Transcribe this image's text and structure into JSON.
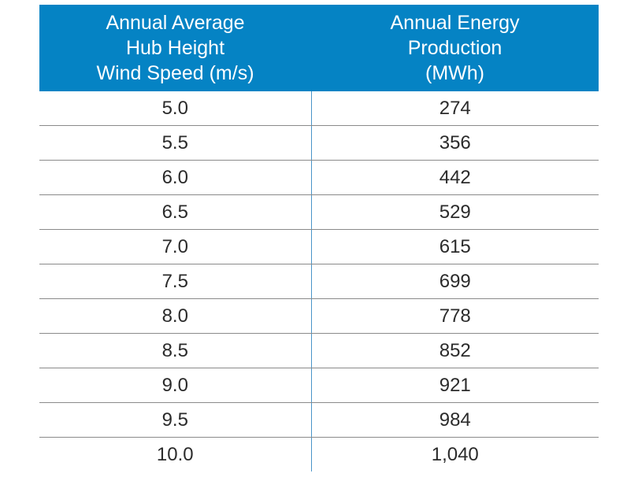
{
  "chart_data": {
    "type": "table",
    "columns": [
      {
        "lines": [
          "Annual Average",
          "Hub Height",
          "Wind Speed (m/s)"
        ]
      },
      {
        "lines": [
          "Annual Energy",
          "Production",
          "(MWh)"
        ]
      }
    ],
    "rows": [
      [
        "5.0",
        "274"
      ],
      [
        "5.5",
        "356"
      ],
      [
        "6.0",
        "442"
      ],
      [
        "6.5",
        "529"
      ],
      [
        "7.0",
        "615"
      ],
      [
        "7.5",
        "699"
      ],
      [
        "8.0",
        "778"
      ],
      [
        "8.5",
        "852"
      ],
      [
        "9.0",
        "921"
      ],
      [
        "9.5",
        "984"
      ],
      [
        "10.0",
        "1,040"
      ]
    ]
  },
  "colors": {
    "header_bg": "#0583c4",
    "header_text": "#ffffff",
    "row_divider": "#8a8a8a",
    "column_divider": "#4a94c8"
  }
}
